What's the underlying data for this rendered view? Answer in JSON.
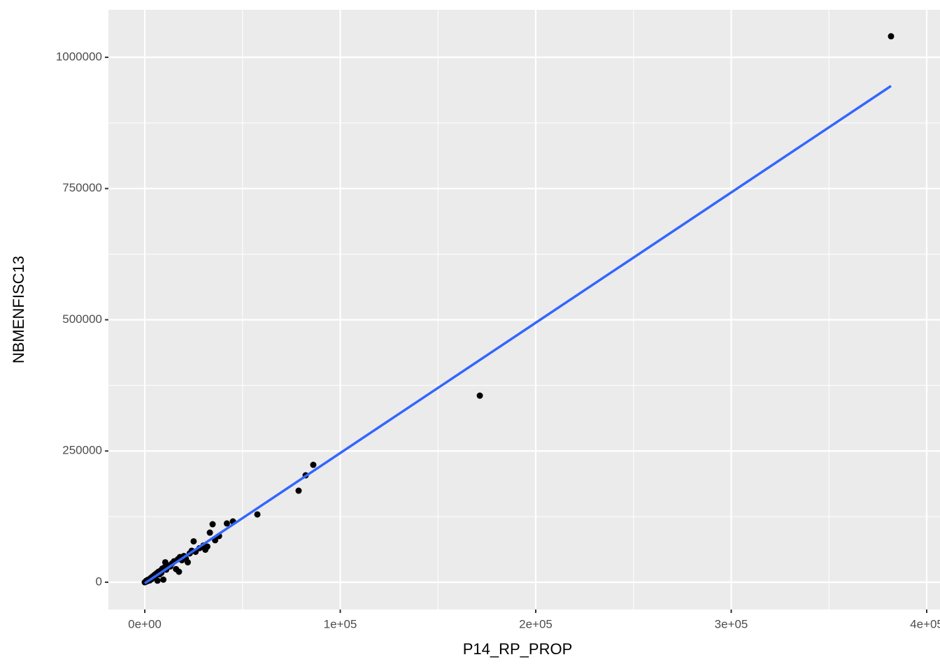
{
  "chart_data": {
    "type": "scatter",
    "xlabel": "P14_RP_PROP",
    "ylabel": "NBMENFISC13",
    "xlim": [
      -18600,
      406800
    ],
    "ylim": [
      -51900,
      1090500
    ],
    "xticks": [
      {
        "value": 0,
        "label": "0e+00"
      },
      {
        "value": 100000,
        "label": "1e+05"
      },
      {
        "value": 200000,
        "label": "2e+05"
      },
      {
        "value": 300000,
        "label": "3e+05"
      },
      {
        "value": 400000,
        "label": "4e+05"
      }
    ],
    "yticks": [
      0,
      250000,
      500000,
      750000,
      1000000
    ],
    "xminor": [
      50000,
      150000,
      250000,
      350000
    ],
    "yminor": [
      125000,
      375000,
      625000,
      875000
    ],
    "grid": true,
    "points": {
      "color": "#000000",
      "x": [
        0,
        500,
        800,
        1200,
        1500,
        2000,
        2500,
        3000,
        3500,
        4000,
        4500,
        5000,
        5500,
        6000,
        6500,
        7000,
        7500,
        8000,
        8500,
        9000,
        9500,
        10000,
        10500,
        11000,
        12000,
        13000,
        14000,
        15000,
        16000,
        17000,
        17500,
        18000,
        19000,
        20000,
        21000,
        22000,
        23000,
        24000,
        25000,
        26000,
        28000,
        30000,
        31000,
        32000,
        33300,
        34700,
        36000,
        38000,
        42000,
        45100,
        57600,
        78700,
        82300,
        86200,
        171400,
        381750
      ],
      "y": [
        0,
        1000,
        3000,
        2000,
        4500,
        5000,
        3500,
        8000,
        6000,
        11000,
        9000,
        14000,
        12000,
        17000,
        3000,
        20000,
        15000,
        22000,
        18000,
        26000,
        5000,
        28000,
        38000,
        24000,
        32000,
        30000,
        36000,
        40000,
        25000,
        44000,
        20000,
        48000,
        42000,
        50000,
        45000,
        38000,
        55000,
        60000,
        78000,
        58000,
        65000,
        70000,
        62000,
        68000,
        94500,
        110500,
        80000,
        88000,
        112000,
        115800,
        129200,
        174400,
        203700,
        223700,
        355500,
        1040000
      ]
    },
    "fit_line": {
      "color": "#3366FF",
      "x": [
        0,
        381750
      ],
      "y": [
        -2000,
        945400
      ]
    }
  }
}
